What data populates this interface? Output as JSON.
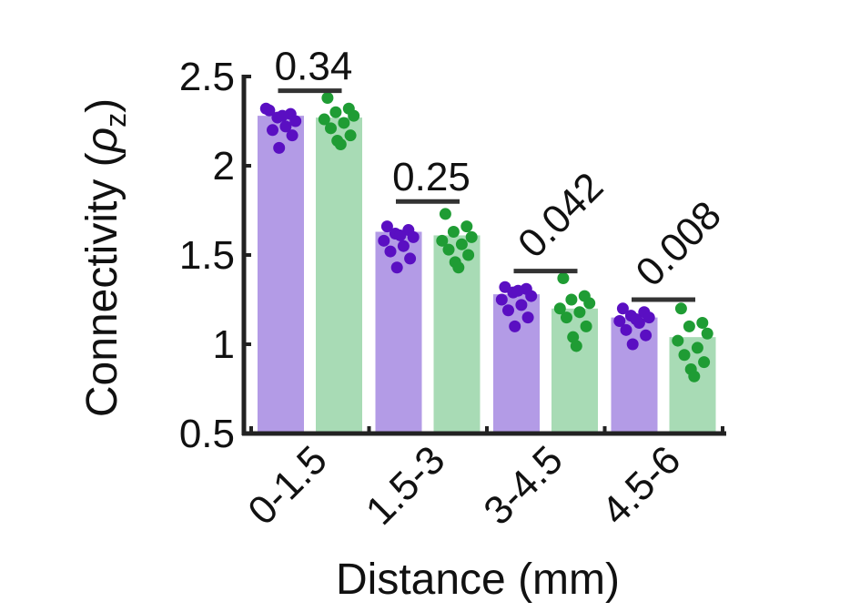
{
  "chart_data": {
    "type": "bar",
    "xlabel": "Distance (mm)",
    "ylabel_main": "Connectivity (",
    "ylabel_symbol": "ρ",
    "ylabel_sub": "z",
    "ylabel_close": ")",
    "ylim": [
      0.5,
      2.5
    ],
    "yticks": [
      0.5,
      1,
      1.5,
      2,
      2.5
    ],
    "ytick_labels": [
      "0.5",
      "1",
      "1.5",
      "2",
      "2.5"
    ],
    "categories": [
      "0-1.5",
      "1.5-3",
      "3-4.5",
      "4.5-6"
    ],
    "grid": false,
    "colors": {
      "series1_bar": "#b39be6",
      "series1_dot": "#5a0fc2",
      "series2_bar": "#a8dbb5",
      "series2_dot": "#1f9c34",
      "axis": "#222222",
      "sig_line": "#333333"
    },
    "series": [
      {
        "values": [
          2.28,
          1.63,
          1.28,
          1.15
        ],
        "points": [
          [
            2.31,
            2.29,
            2.27,
            2.25,
            2.32,
            2.22,
            2.2,
            2.17,
            2.1,
            2.28
          ],
          [
            1.66,
            1.64,
            1.62,
            1.6,
            1.58,
            1.55,
            1.52,
            1.48,
            1.43,
            1.61
          ],
          [
            1.32,
            1.31,
            1.29,
            1.27,
            1.25,
            1.22,
            1.19,
            1.15,
            1.1,
            1.3
          ],
          [
            1.2,
            1.18,
            1.16,
            1.15,
            1.13,
            1.12,
            1.08,
            1.05,
            1.0,
            1.14
          ]
        ]
      },
      {
        "values": [
          2.27,
          1.61,
          1.2,
          1.04
        ],
        "points": [
          [
            2.38,
            2.32,
            2.3,
            2.28,
            2.26,
            2.24,
            2.21,
            2.17,
            2.14,
            2.12
          ],
          [
            1.73,
            1.66,
            1.63,
            1.6,
            1.58,
            1.56,
            1.53,
            1.5,
            1.46,
            1.43
          ],
          [
            1.37,
            1.27,
            1.25,
            1.23,
            1.2,
            1.18,
            1.15,
            1.1,
            1.04,
            0.99
          ],
          [
            1.2,
            1.12,
            1.1,
            1.06,
            1.02,
            0.98,
            0.94,
            0.9,
            0.86,
            0.82
          ]
        ]
      }
    ],
    "significance": [
      {
        "label": "0.34",
        "y": 2.42,
        "rotated": false
      },
      {
        "label": "0.25",
        "y": 1.8,
        "rotated": false
      },
      {
        "label": "0.042",
        "y": 1.41,
        "rotated": true
      },
      {
        "label": "0.008",
        "y": 1.25,
        "rotated": true
      }
    ]
  }
}
